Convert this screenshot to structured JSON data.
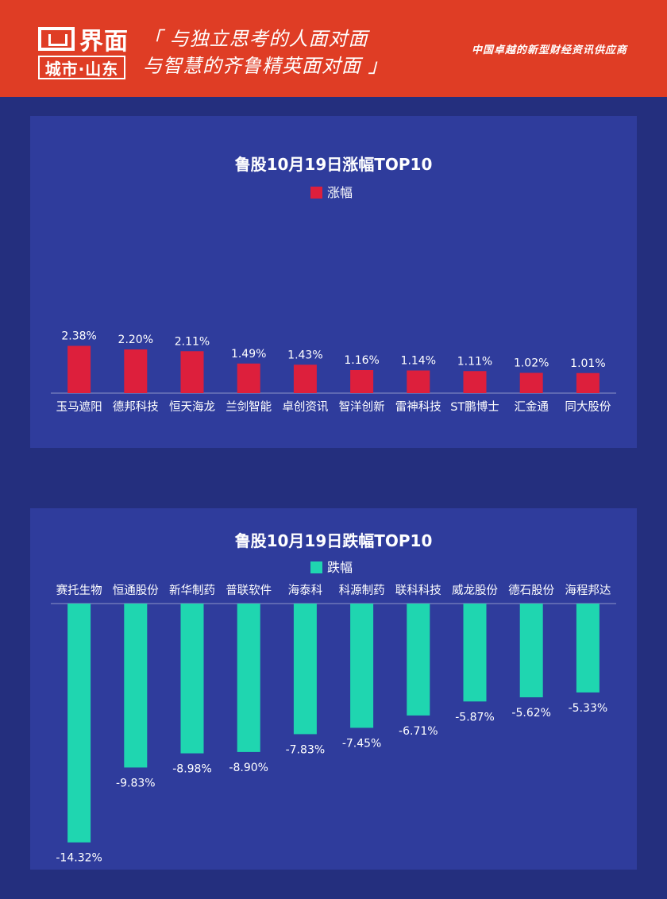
{
  "header": {
    "logo_text": "界面",
    "logo_sub": "城市·山东",
    "slogan_line1": "「 与独立思考的人面对面",
    "slogan_line2": "与智慧的齐鲁精英面对面 」",
    "tagline": "中国卓越的新型财经资讯供应商"
  },
  "colors": {
    "header_bg": "#df3d25",
    "page_bg": "#242f7e",
    "panel_bg": "#2f3c9c",
    "up_color": "#dd1f3c",
    "down_color": "#1fd6b0"
  },
  "chart_data": [
    {
      "type": "bar",
      "title": "鲁股10月19日涨幅TOP10",
      "series": [
        {
          "name": "涨幅",
          "values": [
            2.38,
            2.2,
            2.11,
            1.49,
            1.43,
            1.16,
            1.14,
            1.11,
            1.02,
            1.01
          ],
          "labels": [
            "2.38%",
            "2.20%",
            "2.11%",
            "1.49%",
            "1.43%",
            "1.16%",
            "1.14%",
            "1.11%",
            "1.02%",
            "1.01%"
          ]
        }
      ],
      "categories": [
        "玉马遮阳",
        "德邦科技",
        "恒天海龙",
        "兰剑智能",
        "卓创资讯",
        "智洋创新",
        "雷神科技",
        "ST鹏博士",
        "汇金通",
        "同大股份"
      ],
      "legend_position": "top",
      "grid": false
    },
    {
      "type": "bar",
      "title": "鲁股10月19日跌幅TOP10",
      "series": [
        {
          "name": "跌幅",
          "values": [
            -14.32,
            -9.83,
            -8.98,
            -8.9,
            -7.83,
            -7.45,
            -6.71,
            -5.87,
            -5.62,
            -5.33
          ],
          "labels": [
            "-14.32%",
            "-9.83%",
            "-8.98%",
            "-8.90%",
            "-7.83%",
            "-7.45%",
            "-6.71%",
            "-5.87%",
            "-5.62%",
            "-5.33%"
          ]
        }
      ],
      "categories": [
        "赛托生物",
        "恒通股份",
        "新华制药",
        "普联软件",
        "海泰科",
        "科源制药",
        "联科科技",
        "威龙股份",
        "德石股份",
        "海程邦达"
      ],
      "legend_position": "top",
      "grid": false
    }
  ]
}
